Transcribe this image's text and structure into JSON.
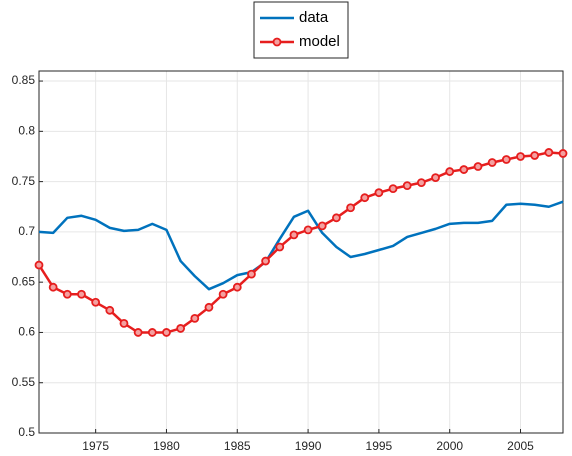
{
  "chart_data": {
    "type": "line",
    "x": [
      1971,
      1972,
      1973,
      1974,
      1975,
      1976,
      1977,
      1978,
      1979,
      1980,
      1981,
      1982,
      1983,
      1984,
      1985,
      1986,
      1987,
      1988,
      1989,
      1990,
      1991,
      1992,
      1993,
      1994,
      1995,
      1996,
      1997,
      1998,
      1999,
      2000,
      2001,
      2002,
      2003,
      2004,
      2005,
      2006,
      2007,
      2008
    ],
    "series": [
      {
        "name": "data",
        "color": "#0072bd",
        "marker": false,
        "values": [
          0.7,
          0.699,
          0.714,
          0.716,
          0.712,
          0.704,
          0.701,
          0.702,
          0.708,
          0.702,
          0.671,
          0.656,
          0.643,
          0.649,
          0.657,
          0.66,
          0.67,
          0.693,
          0.715,
          0.721,
          0.699,
          0.685,
          0.675,
          0.678,
          0.682,
          0.686,
          0.695,
          0.699,
          0.703,
          0.708,
          0.709,
          0.709,
          0.711,
          0.727,
          0.728,
          0.727,
          0.725,
          0.73
        ]
      },
      {
        "name": "model",
        "color": "#e61e1e",
        "marker": true,
        "values": [
          0.667,
          0.645,
          0.638,
          0.638,
          0.63,
          0.622,
          0.609,
          0.6,
          0.6,
          0.6,
          0.604,
          0.614,
          0.625,
          0.638,
          0.645,
          0.658,
          0.671,
          0.685,
          0.697,
          0.702,
          0.706,
          0.714,
          0.724,
          0.734,
          0.739,
          0.743,
          0.746,
          0.749,
          0.754,
          0.76,
          0.762,
          0.765,
          0.769,
          0.772,
          0.775,
          0.776,
          0.779,
          0.778
        ]
      }
    ],
    "xlim": [
      1971,
      2008
    ],
    "xticks": [
      1975,
      1980,
      1985,
      1990,
      1995,
      2000,
      2005
    ],
    "ylim": [
      0.5,
      0.86
    ],
    "yticks": [
      0.5,
      0.55,
      0.6,
      0.65,
      0.7,
      0.75,
      0.8,
      0.85
    ],
    "grid": true,
    "legend": "top"
  }
}
